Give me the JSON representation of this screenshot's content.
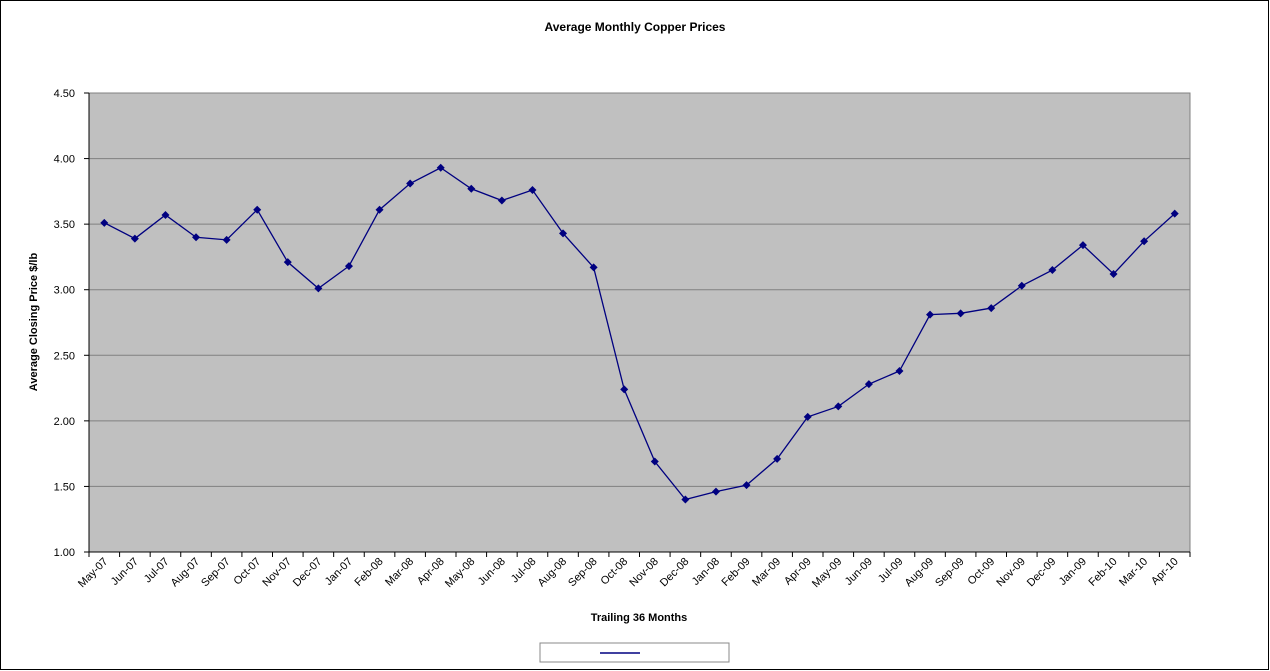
{
  "chart_data": {
    "type": "line",
    "title": "Average Monthly Copper Prices",
    "x_label": "Trailing 36 Months",
    "y_label": "Average Closing Price $/lb",
    "categories": [
      "May-07",
      "Jun-07",
      "Jul-07",
      "Aug-07",
      "Sep-07",
      "Oct-07",
      "Nov-07",
      "Dec-07",
      "Jan-07",
      "Feb-08",
      "Mar-08",
      "Apr-08",
      "May-08",
      "Jun-08",
      "Jul-08",
      "Aug-08",
      "Sep-08",
      "Oct-08",
      "Nov-08",
      "Dec-08",
      "Jan-08",
      "Feb-09",
      "Mar-09",
      "Apr-09",
      "May-09",
      "Jun-09",
      "Jul-09",
      "Aug-09",
      "Sep-09",
      "Oct-09",
      "Nov-09",
      "Dec-09",
      "Jan-09",
      "Feb-10",
      "Mar-10",
      "Apr-10"
    ],
    "series": [
      {
        "color": "#000080",
        "values": [
          3.51,
          3.39,
          3.57,
          3.4,
          3.38,
          3.61,
          3.21,
          3.01,
          3.18,
          3.61,
          3.81,
          3.93,
          3.77,
          3.68,
          3.76,
          3.43,
          3.17,
          2.24,
          1.69,
          1.4,
          1.46,
          1.51,
          1.71,
          2.03,
          2.11,
          2.28,
          2.38,
          2.81,
          2.82,
          2.86,
          3.03,
          3.15,
          3.34,
          3.12,
          3.37,
          3.58
        ]
      }
    ],
    "ylim": [
      1,
      4.5
    ],
    "yticks": [
      {
        "value": 1,
        "label": "1.00"
      },
      {
        "value": 1.5,
        "label": "1.50"
      },
      {
        "value": 2,
        "label": "2.00"
      },
      {
        "value": 2.5,
        "label": "2.50"
      },
      {
        "value": 3,
        "label": "3.00"
      },
      {
        "value": 3.5,
        "label": "3.50"
      },
      {
        "value": 4,
        "label": "4.00"
      },
      {
        "value": 4.5,
        "label": "4.50"
      }
    ],
    "grid": true,
    "plot_background": "#c0c0c0"
  }
}
